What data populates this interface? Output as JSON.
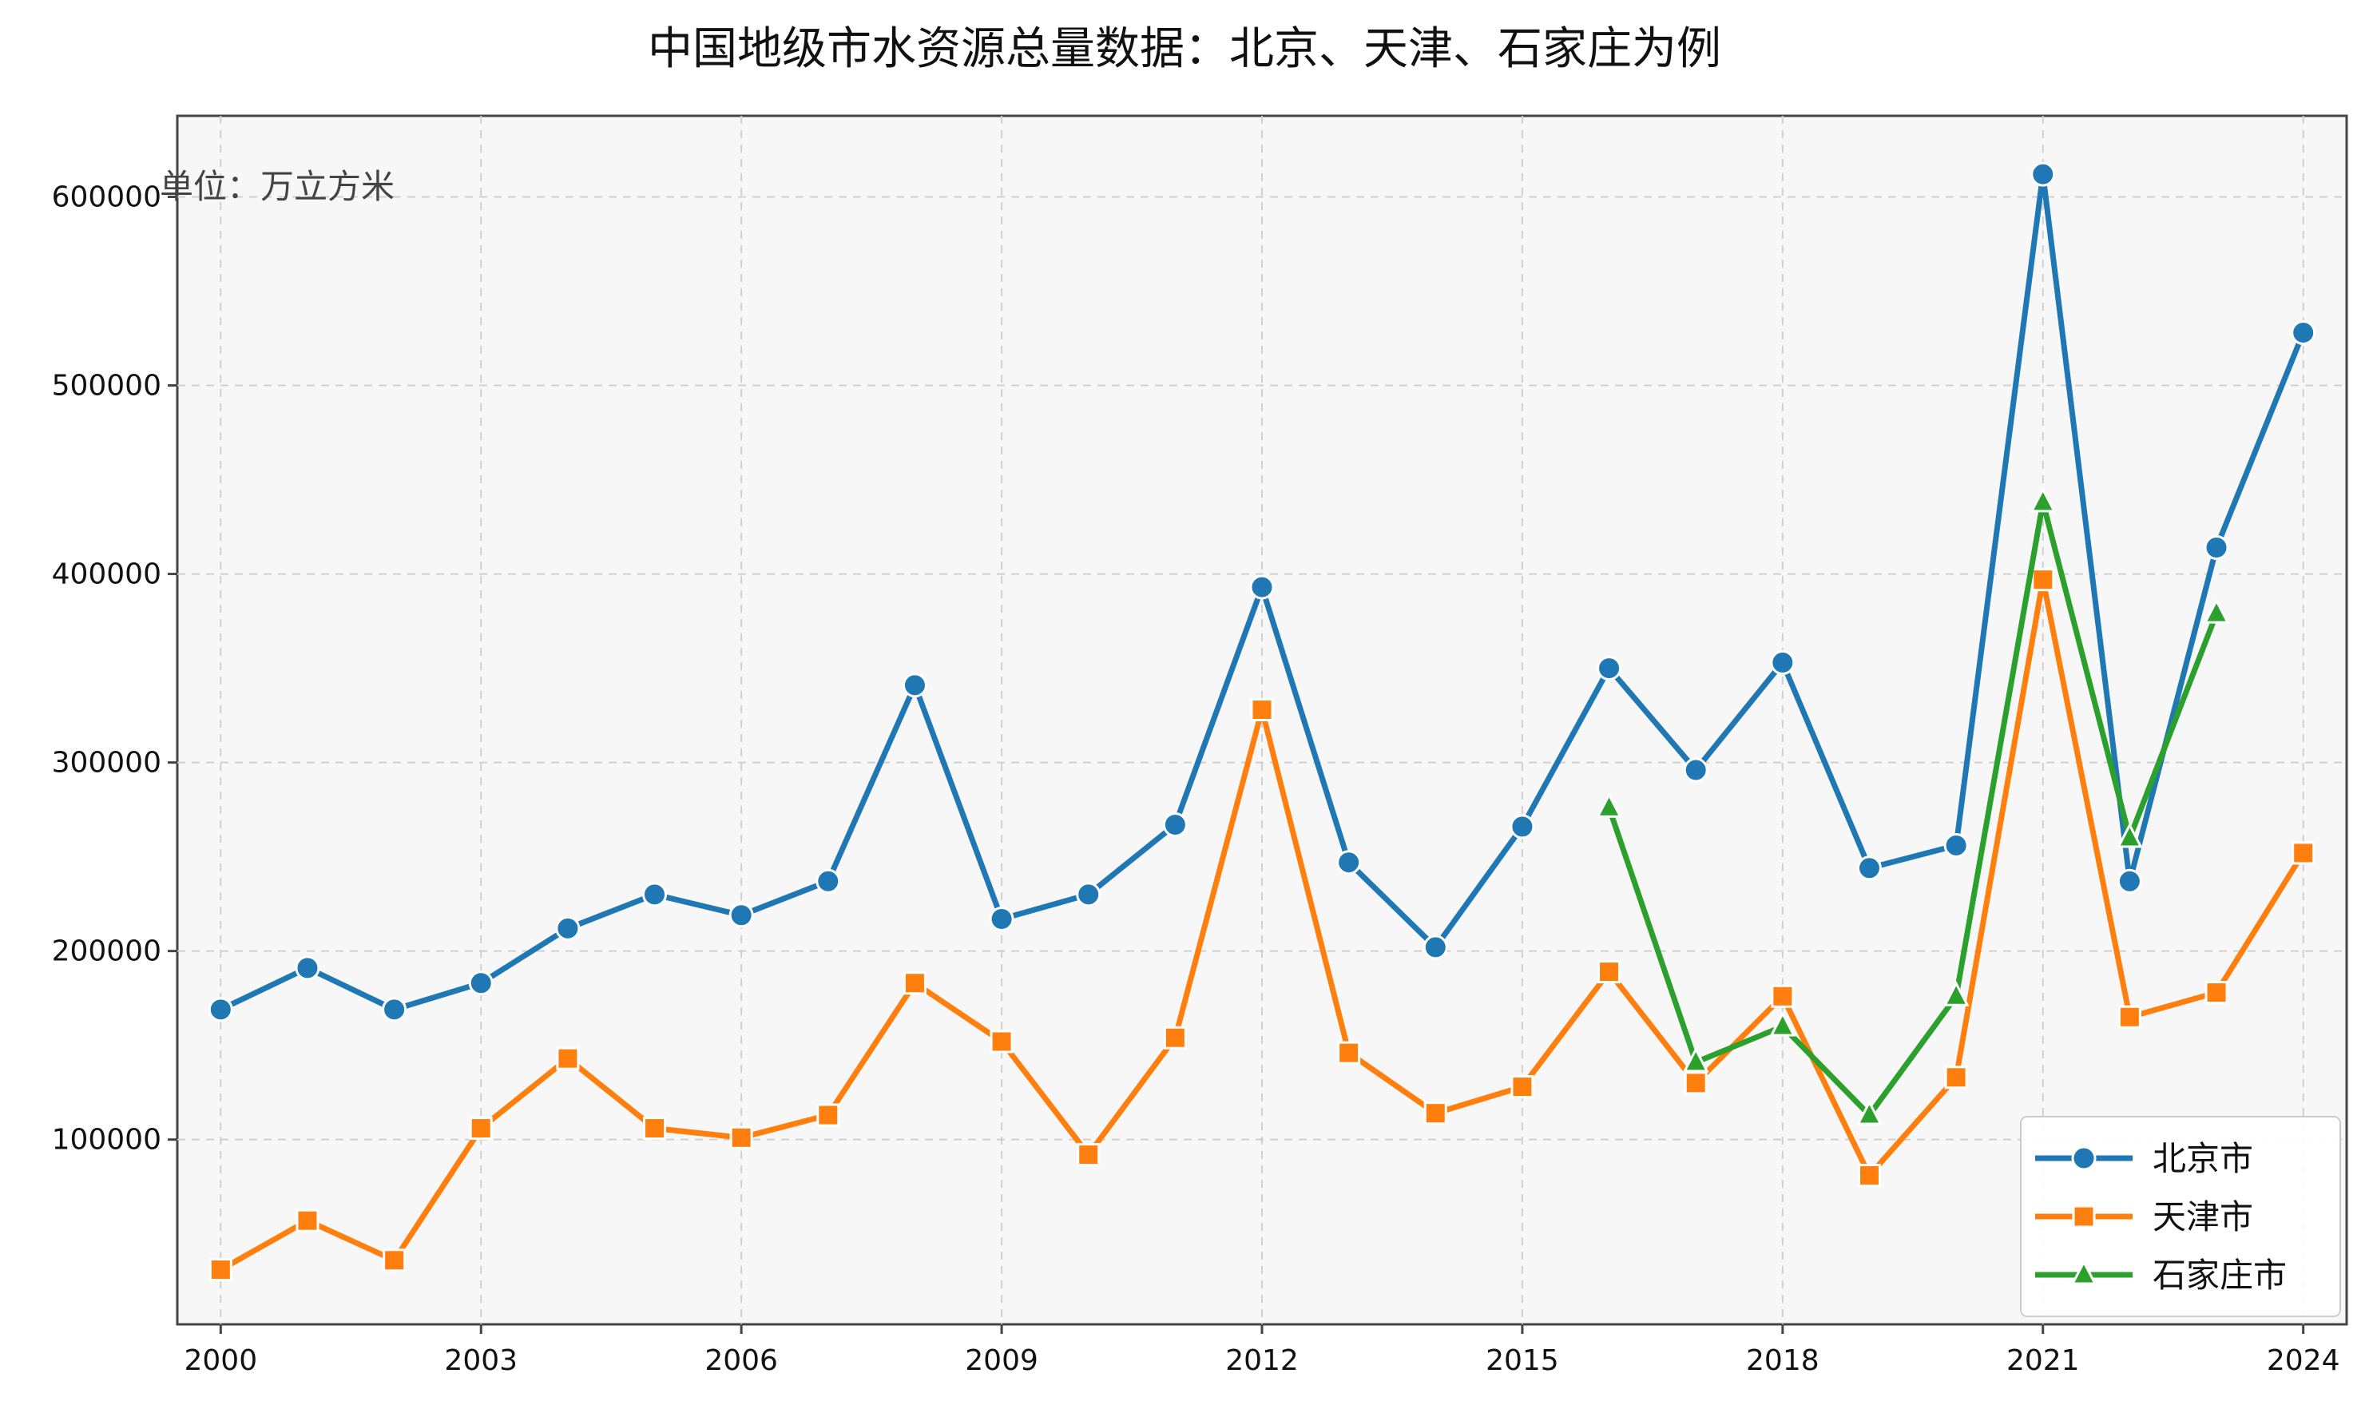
{
  "chart_data": {
    "type": "line",
    "title": "中国地级市水资源总量数据：北京、天津、石家庄为例",
    "unit_note": "单位：万立方米",
    "xlabel": "",
    "ylabel": "",
    "x": [
      2000,
      2001,
      2002,
      2003,
      2004,
      2005,
      2006,
      2007,
      2008,
      2009,
      2010,
      2011,
      2012,
      2013,
      2014,
      2015,
      2016,
      2017,
      2018,
      2019,
      2020,
      2021,
      2022,
      2023,
      2024
    ],
    "xticks": [
      2000,
      2003,
      2006,
      2009,
      2012,
      2015,
      2018,
      2021,
      2024
    ],
    "xlim": [
      1999.5,
      2024.5
    ],
    "yticks": [
      100000,
      200000,
      300000,
      400000,
      500000,
      600000
    ],
    "ylim": [
      2000,
      643000
    ],
    "grid": true,
    "legend_position": "lower-right",
    "series": [
      {
        "name": "北京市",
        "color": "#1f77b4",
        "marker": "circle",
        "values": [
          169000,
          191000,
          169000,
          183000,
          212000,
          230000,
          219000,
          237000,
          341000,
          217000,
          230000,
          267000,
          393000,
          247000,
          202000,
          266000,
          350000,
          296000,
          353000,
          244000,
          256000,
          612000,
          237000,
          414000,
          528000
        ]
      },
      {
        "name": "天津市",
        "color": "#ff7f0e",
        "marker": "square",
        "values": [
          31000,
          57000,
          36000,
          106000,
          143000,
          106000,
          101000,
          113000,
          183000,
          152000,
          92000,
          154000,
          328000,
          146000,
          114000,
          128000,
          189000,
          130000,
          176000,
          81000,
          133000,
          397000,
          165000,
          178000,
          252000
        ]
      },
      {
        "name": "石家庄市",
        "color": "#2ca02c",
        "marker": "triangle",
        "values": [
          null,
          null,
          null,
          null,
          null,
          null,
          null,
          null,
          null,
          null,
          null,
          null,
          null,
          null,
          null,
          null,
          276000,
          141000,
          160000,
          113000,
          176000,
          438000,
          260000,
          379000,
          null
        ]
      }
    ]
  }
}
